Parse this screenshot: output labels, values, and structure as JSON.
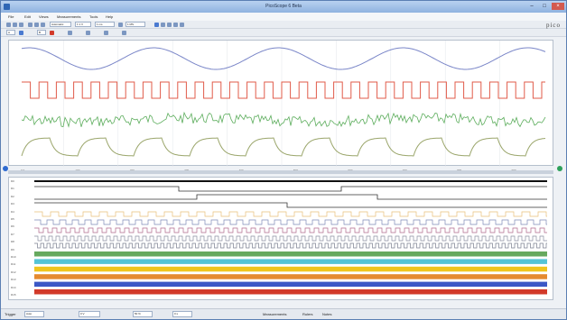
{
  "window": {
    "title": "PicoScope 6 Beta"
  },
  "menu": [
    "File",
    "Edit",
    "Views",
    "Measurements",
    "Tools",
    "Help"
  ],
  "toolbar1": {
    "mode": "Automatic",
    "range1": "± 1 V",
    "range2": "1 ms",
    "samples": "1 MS"
  },
  "toolbar2": {
    "label_a": "A",
    "label_b": "B"
  },
  "brand": "pico",
  "scope": {
    "traces": [
      {
        "name": "sine",
        "color": "#7a86c8"
      },
      {
        "name": "square",
        "color": "#e05b4a"
      },
      {
        "name": "noise",
        "color": "#5cad5c"
      },
      {
        "name": "rc-step",
        "color": "#9aa56a"
      }
    ],
    "ticks": [
      "0.0",
      "100",
      "200",
      "300",
      "400",
      "500",
      "600",
      "700",
      "800",
      "900"
    ]
  },
  "logic": {
    "channels": [
      "D0",
      "D1",
      "D2",
      "D3",
      "D4",
      "D5",
      "D6",
      "D7",
      "D8",
      "D9",
      "D10",
      "D11",
      "D12",
      "D13",
      "D14",
      "D15"
    ],
    "bus_colors": [
      "#66a95e",
      "#55c4d6",
      "#f0c51e",
      "#e58a2f",
      "#3c58c6",
      "#d23a2a"
    ]
  },
  "status": {
    "trigger_label": "Trigger",
    "trigger_mode": "Auto",
    "val1": "0 V",
    "val2": "50 %",
    "val3": "0 s",
    "measurements": "Measurements",
    "rulers": "Rulers",
    "notes": "Notes"
  }
}
